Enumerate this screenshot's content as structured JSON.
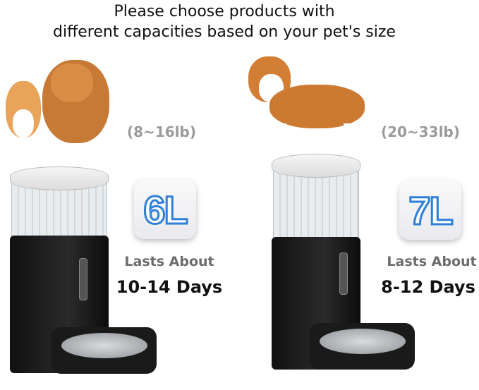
{
  "header": {
    "line1": "Please choose products with",
    "line2": "different capacities based on your pet's size"
  },
  "small": {
    "weight": "(8~16lb)",
    "capacity": "6L",
    "lasts": "Lasts About",
    "days": "10-14 Days",
    "pets": "cat-and-dog"
  },
  "large": {
    "weight": "(20~33lb)",
    "capacity": "7L",
    "lasts": "Lasts About",
    "days": "8-12 Days",
    "pets": "corgi"
  },
  "colors": {
    "outline_blue": "#2f7fd6",
    "feeder_black": "#111111",
    "gray_text": "#9a9a9a"
  }
}
